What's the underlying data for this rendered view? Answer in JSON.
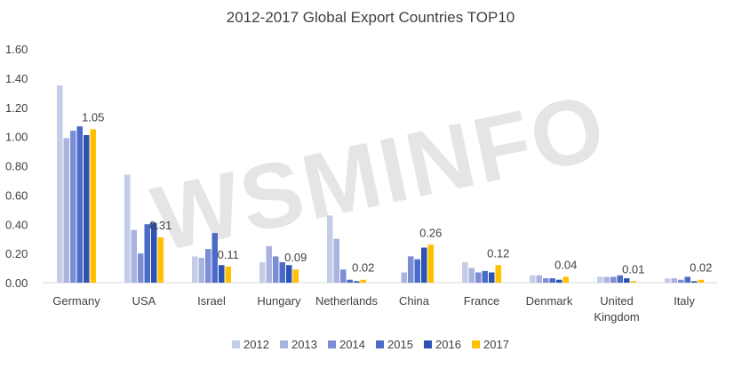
{
  "chart_data": {
    "type": "bar",
    "title": "2012-2017 Global Export Countries TOP10",
    "watermark": "WSMINFO",
    "xlabel": "",
    "ylabel": "",
    "ylim": [
      0,
      1.6
    ],
    "y_ticks": [
      "0.00",
      "0.20",
      "0.40",
      "0.60",
      "0.80",
      "1.00",
      "1.20",
      "1.40",
      "1.60"
    ],
    "grid": false,
    "legend_position": "bottom",
    "categories": [
      [
        "Germany"
      ],
      [
        "USA"
      ],
      [
        "Israel"
      ],
      [
        "Hungary"
      ],
      [
        "Netherlands"
      ],
      [
        "China"
      ],
      [
        "France"
      ],
      [
        "Denmark"
      ],
      [
        "United",
        "Kingdom"
      ],
      [
        "Italy"
      ]
    ],
    "series": [
      {
        "name": "2012",
        "color": "#c5cce8",
        "values": [
          1.35,
          0.74,
          0.18,
          0.14,
          0.46,
          0.0,
          0.14,
          0.05,
          0.04,
          0.03
        ]
      },
      {
        "name": "2013",
        "color": "#a9b3df",
        "values": [
          0.99,
          0.36,
          0.17,
          0.25,
          0.3,
          0.07,
          0.1,
          0.05,
          0.04,
          0.03
        ]
      },
      {
        "name": "2014",
        "color": "#7b8dd4",
        "values": [
          1.04,
          0.2,
          0.23,
          0.18,
          0.09,
          0.18,
          0.07,
          0.03,
          0.04,
          0.02
        ]
      },
      {
        "name": "2015",
        "color": "#4a6bc8",
        "values": [
          1.07,
          0.4,
          0.34,
          0.14,
          0.02,
          0.16,
          0.08,
          0.03,
          0.05,
          0.04
        ]
      },
      {
        "name": "2016",
        "color": "#2e52b2",
        "values": [
          1.01,
          0.41,
          0.12,
          0.12,
          0.01,
          0.24,
          0.07,
          0.02,
          0.03,
          0.01
        ]
      },
      {
        "name": "2017",
        "color": "#ffc000",
        "values": [
          1.05,
          0.31,
          0.11,
          0.09,
          0.02,
          0.26,
          0.12,
          0.04,
          0.01,
          0.02
        ]
      }
    ],
    "data_labels": [
      "1.05",
      "0.31",
      "0.11",
      "0.09",
      "0.02",
      "0.26",
      "0.12",
      "0.04",
      "0.01",
      "0.02"
    ]
  }
}
